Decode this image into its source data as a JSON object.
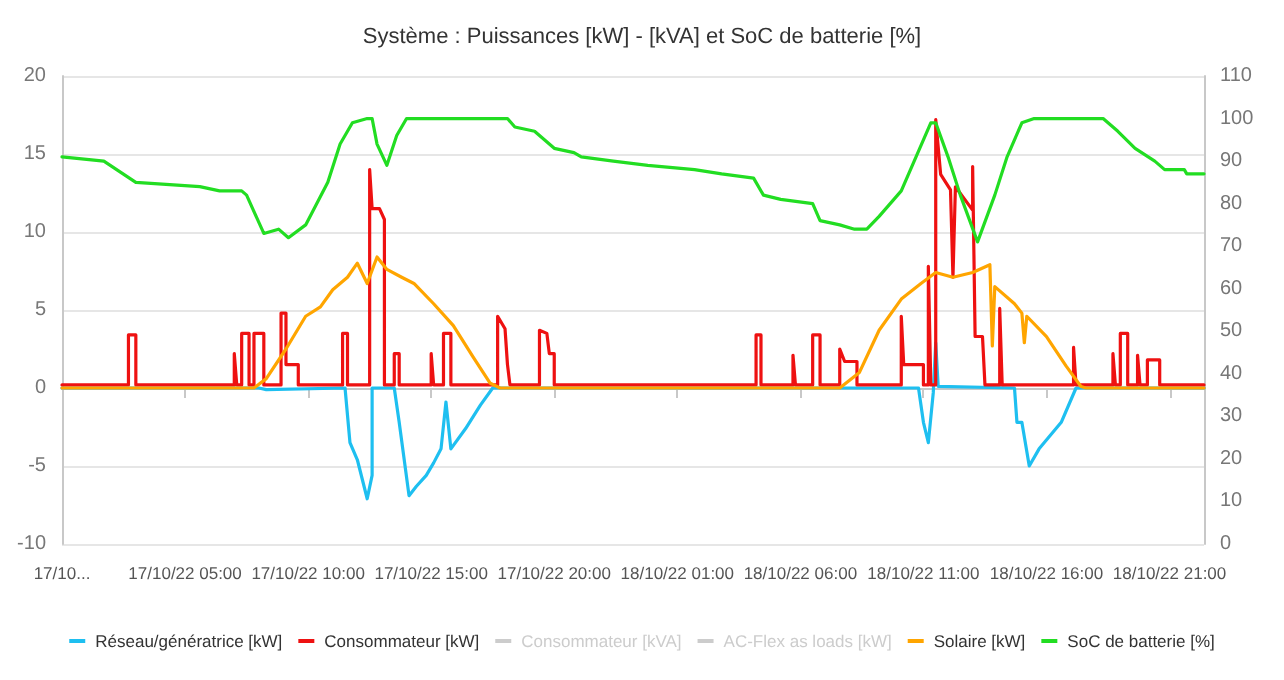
{
  "chart_data": {
    "type": "line",
    "title": "Système : Puissances [kW] - [kVA] et SoC de batterie [%]",
    "xlim": [
      "--10-17T00:00",
      "--10-18T22:24"
    ],
    "xticks": [
      {
        "value": "--10-17T00:00",
        "label": "17/10..."
      },
      {
        "value": "--10-17T05:00",
        "label": "17/10/22 05:00"
      },
      {
        "value": "--10-17T10:00",
        "label": "17/10/22 10:00"
      },
      {
        "value": "--10-17T15:00",
        "label": "17/10/22 15:00"
      },
      {
        "value": "--10-17T20:00",
        "label": "17/10/22 20:00"
      },
      {
        "value": "--10-18T01:00",
        "label": "18/10/22 01:00"
      },
      {
        "value": "--10-18T06:00",
        "label": "18/10/22 06:00"
      },
      {
        "value": "--10-18T11:00",
        "label": "18/10/22 11:00"
      },
      {
        "value": "--10-18T16:00",
        "label": "18/10/22 16:00"
      },
      {
        "value": "--10-18T21:00",
        "label": "18/10/22 21:00"
      }
    ],
    "ylim": [
      -10,
      20
    ],
    "yticks": [
      -10,
      -5,
      0,
      5,
      10,
      15,
      20
    ],
    "y2lim": [
      0,
      110
    ],
    "y2ticks": [
      0,
      10,
      20,
      30,
      40,
      50,
      60,
      70,
      80,
      90,
      100,
      110
    ],
    "grid": "y",
    "legend": "bottom",
    "marker": "none",
    "line_style": "solid",
    "series": [
      {
        "name": "Réseau/génératrice [kW]",
        "color": "#1ebff0",
        "x": [
          "--10-17T00:00",
          "--10-17T08:00",
          "--10-17T08:18",
          "--10-17T11:30",
          "--10-17T11:42",
          "--10-17T12:00",
          "--10-17T12:24",
          "--10-17T12:36",
          "--10-17T12:36",
          "--10-17T13:30",
          "--10-17T13:42",
          "--10-17T14:06",
          "--10-17T14:24",
          "--10-17T14:48",
          "--10-17T15:06",
          "--10-17T15:24",
          "--10-17T15:36",
          "--10-17T15:48",
          "--10-17T16:24",
          "--10-17T17:00",
          "--10-17T17:30",
          "--10-18T10:48",
          "--10-18T11:00",
          "--10-18T11:12",
          "--10-18T11:24",
          "--10-18T11:30",
          "--10-18T11:36",
          "--10-18T14:42",
          "--10-18T14:48",
          "--10-18T15:00",
          "--10-18T15:18",
          "--10-18T15:42",
          "--10-18T16:36",
          "--10-18T17:12",
          "--10-18T22:24"
        ],
        "values": [
          0,
          0,
          -0.1,
          0,
          -3.5,
          -4.6,
          -7.1,
          -5.6,
          0,
          0,
          -2.2,
          -6.9,
          -6.3,
          -5.6,
          -4.8,
          -3.9,
          -0.9,
          -3.9,
          -2.6,
          -1.1,
          0,
          0,
          -2.2,
          -3.5,
          -0.3,
          2.9,
          0.1,
          0,
          -2.2,
          -2.2,
          -5.0,
          -3.9,
          -2.2,
          0,
          0
        ]
      },
      {
        "name": "Consommateur [kW]",
        "color": "#ee1111",
        "x": [
          "--10-17T00:00",
          "--10-17T02:42",
          "--10-17T02:42",
          "--10-17T03:00",
          "--10-17T03:00",
          "--10-17T07:00",
          "--10-17T07:00",
          "--10-17T07:06",
          "--10-17T07:18",
          "--10-17T07:18",
          "--10-17T07:36",
          "--10-17T07:36",
          "--10-17T07:48",
          "--10-17T07:48",
          "--10-17T08:12",
          "--10-17T08:12",
          "--10-17T08:54",
          "--10-17T08:54",
          "--10-17T09:06",
          "--10-17T09:06",
          "--10-17T09:36",
          "--10-17T09:36",
          "--10-17T11:24",
          "--10-17T11:24",
          "--10-17T11:36",
          "--10-17T11:36",
          "--10-17T12:30",
          "--10-17T12:30",
          "--10-17T12:36",
          "--10-17T12:54",
          "--10-17T13:06",
          "--10-17T13:06",
          "--10-17T13:30",
          "--10-17T13:30",
          "--10-17T13:42",
          "--10-17T13:42",
          "--10-17T15:00",
          "--10-17T15:00",
          "--10-17T15:06",
          "--10-17T15:30",
          "--10-17T15:30",
          "--10-17T15:48",
          "--10-17T15:48",
          "--10-17T17:42",
          "--10-17T17:42",
          "--10-17T18:00",
          "--10-17T18:06",
          "--10-17T18:12",
          "--10-17T19:24",
          "--10-17T19:24",
          "--10-17T19:42",
          "--10-17T19:48",
          "--10-17T20:00",
          "--10-17T20:00",
          "--10-18T04:12",
          "--10-18T04:12",
          "--10-18T04:24",
          "--10-18T04:24",
          "--10-18T05:42",
          "--10-18T05:42",
          "--10-18T05:48",
          "--10-18T06:30",
          "--10-18T06:30",
          "--10-18T06:48",
          "--10-18T06:48",
          "--10-18T07:36",
          "--10-18T07:36",
          "--10-18T07:48",
          "--10-18T08:18",
          "--10-18T08:18",
          "--10-18T10:06",
          "--10-18T10:06",
          "--10-18T10:12",
          "--10-18T11:00",
          "--10-18T11:00",
          "--10-18T11:12",
          "--10-18T11:12",
          "--10-18T11:18",
          "--10-18T11:30",
          "--10-18T11:30",
          "--10-18T11:42",
          "--10-18T12:06",
          "--10-18T12:12",
          "--10-18T12:18",
          "--10-18T13:00",
          "--10-18T13:00",
          "--10-18T13:06",
          "--10-18T13:24",
          "--10-18T13:30",
          "--10-18T14:06",
          "--10-18T14:06",
          "--10-18T14:12",
          "--10-18T17:06",
          "--10-18T17:06",
          "--10-18T17:12",
          "--10-18T18:42",
          "--10-18T18:42",
          "--10-18T18:48",
          "--10-18T19:00",
          "--10-18T19:00",
          "--10-18T19:18",
          "--10-18T19:18",
          "--10-18T19:42",
          "--10-18T19:42",
          "--10-18T19:48",
          "--10-18T20:06",
          "--10-18T20:06",
          "--10-18T20:36",
          "--10-18T20:36",
          "--10-18T22:24"
        ],
        "values": [
          0.2,
          0.2,
          3.4,
          3.4,
          0.2,
          0.2,
          2.2,
          0.2,
          0.2,
          3.5,
          3.5,
          0.2,
          0.2,
          3.5,
          3.5,
          0.2,
          0.2,
          4.8,
          4.8,
          1.5,
          1.5,
          0.2,
          0.2,
          3.5,
          3.5,
          0.2,
          0.2,
          14,
          11.5,
          11.5,
          10.8,
          0.2,
          0.2,
          2.2,
          2.2,
          0.2,
          0.2,
          2.2,
          0.2,
          0.2,
          3.5,
          3.5,
          0.2,
          0.2,
          4.6,
          3.8,
          1.5,
          0.2,
          0.2,
          3.7,
          3.5,
          2.2,
          2.2,
          0.2,
          0.2,
          3.4,
          3.4,
          0.2,
          0.2,
          2.1,
          0.2,
          0.2,
          3.4,
          3.4,
          0.2,
          0.2,
          2.5,
          1.7,
          1.7,
          0.2,
          0.2,
          4.6,
          1.5,
          1.5,
          0.2,
          0.2,
          7.8,
          0.2,
          0.2,
          17.2,
          13.7,
          12.7,
          7.1,
          12.9,
          11.4,
          14.2,
          3.3,
          3.3,
          0.2,
          0.2,
          5.1,
          0.2,
          0.2,
          2.6,
          0.2,
          0.2,
          2.2,
          0.2,
          0.2,
          3.5,
          3.5,
          0.2,
          0.2,
          2.1,
          0.2,
          0.2,
          1.8,
          1.8,
          0.2,
          0.2
        ]
      },
      {
        "name": "Consommateur [kVA]"
      },
      {
        "name": "AC-Flex as loads [kW]"
      },
      {
        "name": "Solaire [kW]",
        "color": "#ffa500",
        "x": [
          "--10-17T00:00",
          "--10-17T07:48",
          "--10-17T08:18",
          "--10-17T09:06",
          "--10-17T09:54",
          "--10-17T10:30",
          "--10-17T11:00",
          "--10-17T11:36",
          "--10-17T12:00",
          "--10-17T12:24",
          "--10-17T12:48",
          "--10-17T13:12",
          "--10-17T13:48",
          "--10-17T14:18",
          "--10-17T15:06",
          "--10-17T15:54",
          "--10-17T16:42",
          "--10-17T17:24",
          "--10-17T17:48",
          "--10-18T07:36",
          "--10-18T08:24",
          "--10-18T09:12",
          "--10-18T10:06",
          "--10-18T10:54",
          "--10-18T11:30",
          "--10-18T12:12",
          "--10-18T13:00",
          "--10-18T13:42",
          "--10-18T13:48",
          "--10-18T13:54",
          "--10-18T14:42",
          "--10-18T15:00",
          "--10-18T15:06",
          "--10-18T15:12",
          "--10-18T16:00",
          "--10-18T16:48",
          "--10-18T17:24",
          "--10-18T17:36",
          "--10-18T22:24"
        ],
        "values": [
          0,
          0,
          0.6,
          2.5,
          4.6,
          5.2,
          6.3,
          7.1,
          8.0,
          6.7,
          8.4,
          7.6,
          7.1,
          6.7,
          5.4,
          4.0,
          2.0,
          0.3,
          0,
          0,
          1.0,
          3.7,
          5.7,
          6.7,
          7.4,
          7.1,
          7.4,
          7.9,
          2.7,
          6.5,
          5.4,
          4.8,
          2.9,
          4.6,
          3.3,
          1.4,
          0.1,
          0,
          0
        ]
      },
      {
        "name": "SoC de batterie [%]",
        "color": "#22dd22",
        "axis": "y2",
        "x": [
          "--10-17T00:00",
          "--10-17T01:42",
          "--10-17T03:00",
          "--10-17T05:36",
          "--10-17T06:24",
          "--10-17T07:18",
          "--10-17T07:30",
          "--10-17T08:12",
          "--10-17T08:48",
          "--10-17T09:12",
          "--10-17T09:54",
          "--10-17T10:48",
          "--10-17T11:18",
          "--10-17T11:48",
          "--10-17T12:24",
          "--10-17T12:36",
          "--10-17T12:48",
          "--10-17T13:12",
          "--10-17T13:36",
          "--10-17T14:00",
          "--10-17T18:06",
          "--10-17T18:24",
          "--10-17T19:12",
          "--10-17T20:00",
          "--10-17T20:48",
          "--10-17T21:06",
          "--10-17T22:24",
          "--10-17T23:48",
          "--10-18T01:42",
          "--10-18T02:48",
          "--10-18T04:06",
          "--10-18T04:30",
          "--10-18T05:12",
          "--10-18T06:30",
          "--10-18T06:48",
          "--10-18T07:36",
          "--10-18T08:12",
          "--10-18T08:42",
          "--10-18T09:12",
          "--10-18T10:06",
          "--10-18T10:42",
          "--10-18T11:18",
          "--10-18T11:30",
          "--10-18T12:00",
          "--10-18T12:30",
          "--10-18T13:12",
          "--10-18T13:54",
          "--10-18T14:24",
          "--10-18T15:00",
          "--10-18T15:30",
          "--10-18T18:18",
          "--10-18T18:54",
          "--10-18T19:36",
          "--10-18T20:24",
          "--10-18T20:48",
          "--10-18T21:36",
          "--10-18T21:42",
          "--10-18T22:24"
        ],
        "values": [
          91,
          90,
          85,
          84,
          83,
          83,
          82,
          73,
          74,
          72,
          75,
          85,
          94,
          99,
          100,
          100,
          94,
          89,
          96,
          100,
          100,
          98,
          97,
          93,
          92,
          91,
          90,
          89,
          88,
          87,
          86,
          82,
          81,
          80,
          76,
          75,
          74,
          74,
          77,
          83,
          91,
          99,
          99,
          91,
          82,
          71,
          82,
          91,
          99,
          100,
          100,
          97,
          93,
          90,
          88,
          88,
          87,
          87
        ]
      }
    ]
  }
}
